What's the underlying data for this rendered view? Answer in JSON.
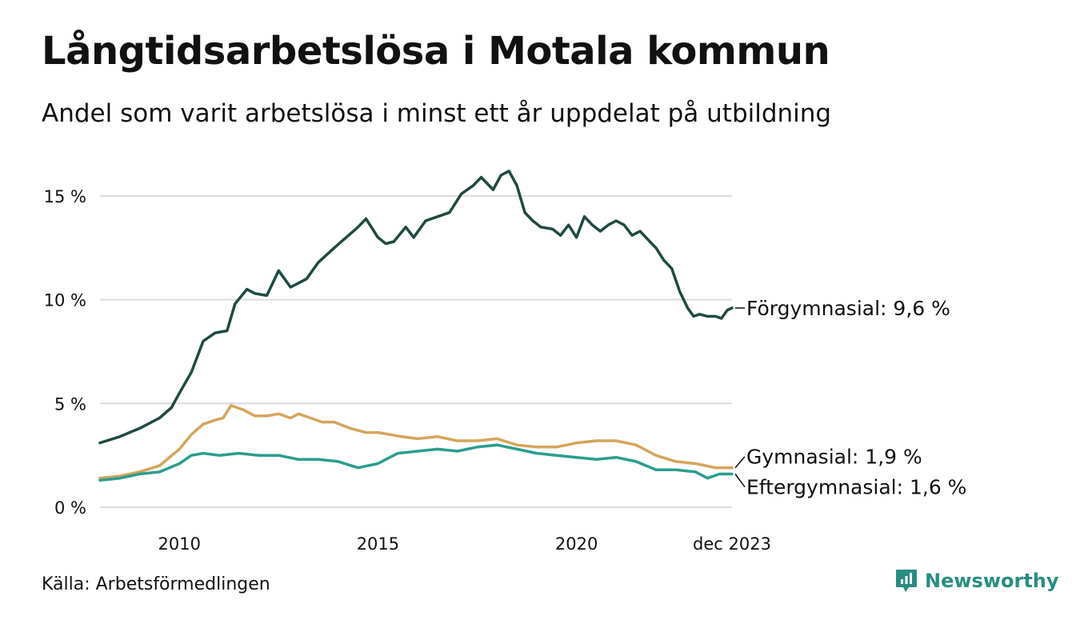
{
  "title": "Långtidsarbetslösa i Motala kommun",
  "subtitle": "Andel som varit arbetslösa i minst ett år uppdelat på utbildning",
  "source": "Källa: Arbetsförmedlingen",
  "brand": "Newsworthy",
  "colors": {
    "background": "#ffffff",
    "grid": "#dcdcdc",
    "text": "#111111",
    "brand": "#2a8d83"
  },
  "chart_data": {
    "type": "line",
    "title": "Långtidsarbetslösa i Motala kommun",
    "xlabel": "",
    "ylabel": "",
    "xlim": [
      2008.0,
      2023.917
    ],
    "ylim": [
      0,
      16.5
    ],
    "yticks": [
      0,
      5,
      10,
      15
    ],
    "yticklabels": [
      "0 %",
      "5 %",
      "10 %",
      "15 %"
    ],
    "xticks": [
      2010,
      2015,
      2020,
      2023.917
    ],
    "xticklabels": [
      "2010",
      "2015",
      "2020",
      "dec 2023"
    ],
    "grid": true,
    "legend": "direct-labels-right",
    "series": [
      {
        "name": "Förgymnasial",
        "label": "Förgymnasial: 9,6 %",
        "color": "#1f4a42",
        "points": [
          [
            2008.0,
            3.1
          ],
          [
            2008.5,
            3.4
          ],
          [
            2009.0,
            3.8
          ],
          [
            2009.5,
            4.3
          ],
          [
            2009.8,
            4.8
          ],
          [
            2010.0,
            5.5
          ],
          [
            2010.3,
            6.5
          ],
          [
            2010.6,
            8.0
          ],
          [
            2010.9,
            8.4
          ],
          [
            2011.2,
            8.5
          ],
          [
            2011.4,
            9.8
          ],
          [
            2011.7,
            10.5
          ],
          [
            2011.9,
            10.3
          ],
          [
            2012.2,
            10.2
          ],
          [
            2012.5,
            11.4
          ],
          [
            2012.8,
            10.6
          ],
          [
            2013.2,
            11.0
          ],
          [
            2013.5,
            11.8
          ],
          [
            2013.9,
            12.5
          ],
          [
            2014.2,
            13.0
          ],
          [
            2014.5,
            13.5
          ],
          [
            2014.7,
            13.9
          ],
          [
            2015.0,
            13.0
          ],
          [
            2015.2,
            12.7
          ],
          [
            2015.4,
            12.8
          ],
          [
            2015.7,
            13.5
          ],
          [
            2015.9,
            13.0
          ],
          [
            2016.2,
            13.8
          ],
          [
            2016.5,
            14.0
          ],
          [
            2016.8,
            14.2
          ],
          [
            2017.1,
            15.1
          ],
          [
            2017.4,
            15.5
          ],
          [
            2017.6,
            15.9
          ],
          [
            2017.9,
            15.3
          ],
          [
            2018.1,
            16.0
          ],
          [
            2018.3,
            16.2
          ],
          [
            2018.5,
            15.5
          ],
          [
            2018.7,
            14.2
          ],
          [
            2018.9,
            13.8
          ],
          [
            2019.1,
            13.5
          ],
          [
            2019.4,
            13.4
          ],
          [
            2019.6,
            13.1
          ],
          [
            2019.8,
            13.6
          ],
          [
            2020.0,
            13.0
          ],
          [
            2020.2,
            14.0
          ],
          [
            2020.4,
            13.6
          ],
          [
            2020.6,
            13.3
          ],
          [
            2020.8,
            13.6
          ],
          [
            2021.0,
            13.8
          ],
          [
            2021.2,
            13.6
          ],
          [
            2021.4,
            13.1
          ],
          [
            2021.6,
            13.3
          ],
          [
            2021.8,
            12.9
          ],
          [
            2022.0,
            12.5
          ],
          [
            2022.2,
            11.9
          ],
          [
            2022.4,
            11.5
          ],
          [
            2022.6,
            10.4
          ],
          [
            2022.8,
            9.6
          ],
          [
            2022.95,
            9.2
          ],
          [
            2023.1,
            9.3
          ],
          [
            2023.3,
            9.2
          ],
          [
            2023.5,
            9.2
          ],
          [
            2023.65,
            9.1
          ],
          [
            2023.8,
            9.5
          ],
          [
            2023.917,
            9.6
          ]
        ]
      },
      {
        "name": "Gymnasial",
        "label": "Gymnasial: 1,9 %",
        "color": "#d4a55a",
        "points": [
          [
            2008.0,
            1.4
          ],
          [
            2008.5,
            1.5
          ],
          [
            2009.0,
            1.7
          ],
          [
            2009.5,
            2.0
          ],
          [
            2010.0,
            2.8
          ],
          [
            2010.3,
            3.5
          ],
          [
            2010.6,
            4.0
          ],
          [
            2010.9,
            4.2
          ],
          [
            2011.1,
            4.3
          ],
          [
            2011.3,
            4.9
          ],
          [
            2011.6,
            4.7
          ],
          [
            2011.9,
            4.4
          ],
          [
            2012.2,
            4.4
          ],
          [
            2012.5,
            4.5
          ],
          [
            2012.8,
            4.3
          ],
          [
            2013.0,
            4.5
          ],
          [
            2013.3,
            4.3
          ],
          [
            2013.6,
            4.1
          ],
          [
            2013.9,
            4.1
          ],
          [
            2014.3,
            3.8
          ],
          [
            2014.7,
            3.6
          ],
          [
            2015.0,
            3.6
          ],
          [
            2015.3,
            3.5
          ],
          [
            2015.6,
            3.4
          ],
          [
            2016.0,
            3.3
          ],
          [
            2016.5,
            3.4
          ],
          [
            2017.0,
            3.2
          ],
          [
            2017.5,
            3.2
          ],
          [
            2018.0,
            3.3
          ],
          [
            2018.5,
            3.0
          ],
          [
            2019.0,
            2.9
          ],
          [
            2019.5,
            2.9
          ],
          [
            2020.0,
            3.1
          ],
          [
            2020.5,
            3.2
          ],
          [
            2021.0,
            3.2
          ],
          [
            2021.5,
            3.0
          ],
          [
            2022.0,
            2.5
          ],
          [
            2022.5,
            2.2
          ],
          [
            2023.0,
            2.1
          ],
          [
            2023.5,
            1.9
          ],
          [
            2023.917,
            1.9
          ]
        ]
      },
      {
        "name": "Eftergymnasial",
        "label": "Eftergymnasial: 1,6 %",
        "color": "#2a9d8f",
        "points": [
          [
            2008.0,
            1.3
          ],
          [
            2008.5,
            1.4
          ],
          [
            2009.0,
            1.6
          ],
          [
            2009.5,
            1.7
          ],
          [
            2010.0,
            2.1
          ],
          [
            2010.3,
            2.5
          ],
          [
            2010.6,
            2.6
          ],
          [
            2011.0,
            2.5
          ],
          [
            2011.5,
            2.6
          ],
          [
            2012.0,
            2.5
          ],
          [
            2012.5,
            2.5
          ],
          [
            2013.0,
            2.3
          ],
          [
            2013.5,
            2.3
          ],
          [
            2014.0,
            2.2
          ],
          [
            2014.5,
            1.9
          ],
          [
            2015.0,
            2.1
          ],
          [
            2015.5,
            2.6
          ],
          [
            2016.0,
            2.7
          ],
          [
            2016.5,
            2.8
          ],
          [
            2017.0,
            2.7
          ],
          [
            2017.5,
            2.9
          ],
          [
            2018.0,
            3.0
          ],
          [
            2018.5,
            2.8
          ],
          [
            2019.0,
            2.6
          ],
          [
            2019.5,
            2.5
          ],
          [
            2020.0,
            2.4
          ],
          [
            2020.5,
            2.3
          ],
          [
            2021.0,
            2.4
          ],
          [
            2021.5,
            2.2
          ],
          [
            2022.0,
            1.8
          ],
          [
            2022.5,
            1.8
          ],
          [
            2023.0,
            1.7
          ],
          [
            2023.3,
            1.4
          ],
          [
            2023.6,
            1.6
          ],
          [
            2023.917,
            1.6
          ]
        ]
      }
    ]
  }
}
